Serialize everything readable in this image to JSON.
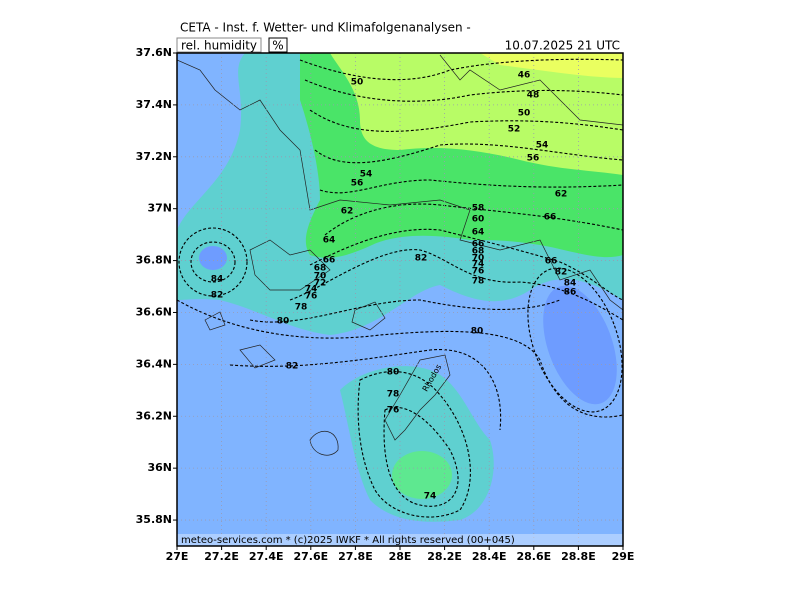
{
  "header": {
    "title": "CETA - Inst. f. Wetter- und Klimafolgenanalysen -",
    "variable": "rel. humidity",
    "unit": "%",
    "valid_time": "10.07.2025 21 UTC"
  },
  "map": {
    "lon_range": [
      27,
      29
    ],
    "lat_range": [
      35.7,
      37.6
    ],
    "lat_ticks": [
      {
        "value": 35.8,
        "label": "35.8N"
      },
      {
        "value": 36,
        "label": "36N"
      },
      {
        "value": 36.2,
        "label": "36.2N"
      },
      {
        "value": 36.4,
        "label": "36.4N"
      },
      {
        "value": 36.6,
        "label": "36.6N"
      },
      {
        "value": 36.8,
        "label": "36.8N"
      },
      {
        "value": 37,
        "label": "37N"
      },
      {
        "value": 37.2,
        "label": "37.2N"
      },
      {
        "value": 37.4,
        "label": "37.4N"
      },
      {
        "value": 37.6,
        "label": "37.6N"
      }
    ],
    "lon_ticks": [
      {
        "value": 27,
        "label": "27E"
      },
      {
        "value": 27.2,
        "label": "27.2E"
      },
      {
        "value": 27.4,
        "label": "27.4E"
      },
      {
        "value": 27.6,
        "label": "27.6E"
      },
      {
        "value": 27.8,
        "label": "27.8E"
      },
      {
        "value": 28,
        "label": "28E"
      },
      {
        "value": 28.2,
        "label": "28.2E"
      },
      {
        "value": 28.4,
        "label": "28.4E"
      },
      {
        "value": 28.6,
        "label": "28.6E"
      },
      {
        "value": 28.8,
        "label": "28.8E"
      },
      {
        "value": 29,
        "label": "29E"
      }
    ],
    "contour_labels": [
      50,
      46,
      48,
      50,
      52,
      54,
      56,
      54,
      56,
      62,
      58,
      60,
      64,
      66,
      68,
      70,
      74,
      76,
      78,
      62,
      66,
      64,
      66,
      68,
      70,
      72,
      74,
      76,
      78,
      80,
      82,
      66,
      82,
      84,
      86,
      84,
      82,
      80,
      82,
      80,
      78,
      76,
      74
    ],
    "place_label": "Rhodos"
  },
  "footer": "meteo-services.com * (c)2025 IWKF * All rights reserved (00+045)"
}
